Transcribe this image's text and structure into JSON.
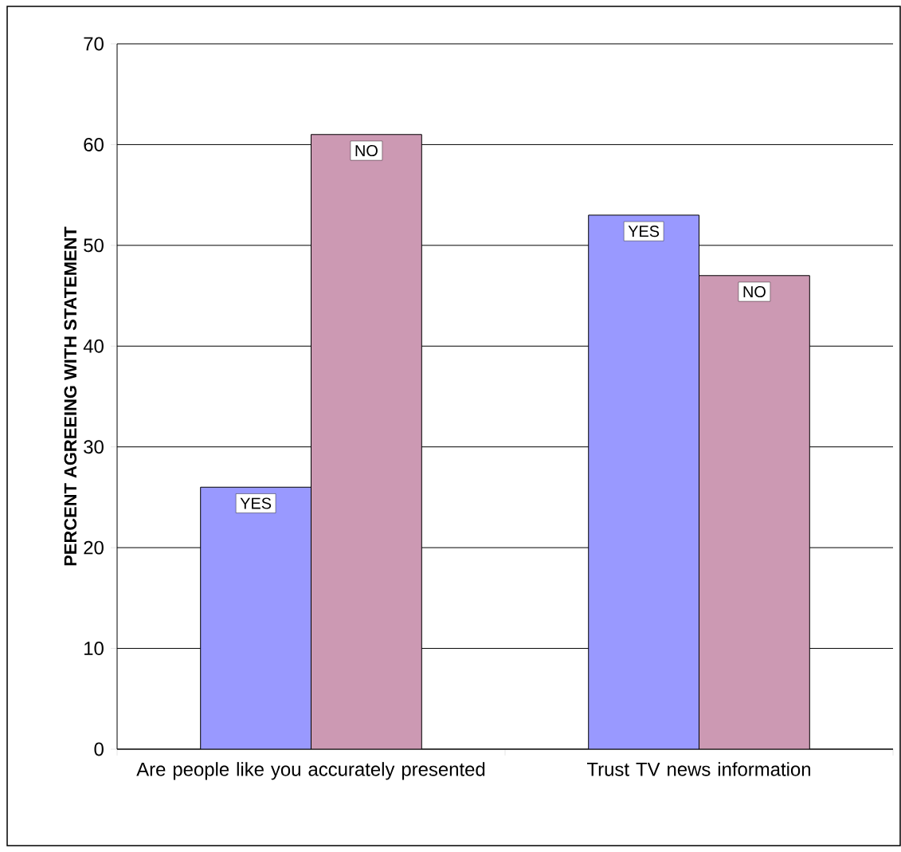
{
  "chart_data": {
    "type": "bar",
    "ylabel": "PERCENT AGREEING WITH STATEMENT",
    "categories": [
      "Are people like you accurately presented",
      "Trust TV news information"
    ],
    "series": [
      {
        "name": "YES",
        "color": "#9999ff",
        "values": [
          26,
          53
        ]
      },
      {
        "name": "NO",
        "color": "#cc99b3",
        "values": [
          61,
          47
        ]
      }
    ],
    "ylim": [
      0,
      70
    ],
    "yticks": [
      0,
      10,
      20,
      30,
      40,
      50,
      60,
      70
    ],
    "grid": "y"
  }
}
